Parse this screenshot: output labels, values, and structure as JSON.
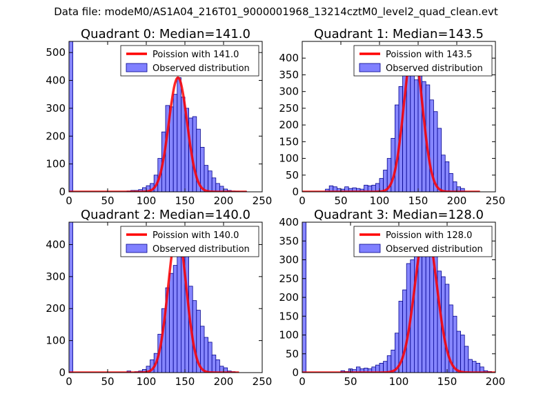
{
  "suptitle": "Data file: modeM0/AS1A04_216T01_9000001968_13214cztM0_level2_quad_clean.evt",
  "colors": {
    "poisson": "#ff0000",
    "bar_fill": "#8080ff",
    "bar_edge": "#00008b"
  },
  "chart_data": [
    {
      "type": "bar",
      "title": "Quadrant 0: Median=141.0",
      "xlim": [
        0,
        250
      ],
      "ylim": [
        0,
        540
      ],
      "xticks": [
        0,
        50,
        100,
        150,
        200,
        250
      ],
      "yticks": [
        0,
        100,
        200,
        300,
        400,
        500
      ],
      "legend": {
        "position": "top-right",
        "entries": [
          "Poission with 141.0",
          "Observed distribution"
        ]
      },
      "bin_width": 5,
      "bins": [
        {
          "x": 0,
          "y": 540
        },
        {
          "x": 75,
          "y": 3
        },
        {
          "x": 80,
          "y": 5
        },
        {
          "x": 85,
          "y": 5
        },
        {
          "x": 90,
          "y": 8
        },
        {
          "x": 95,
          "y": 15
        },
        {
          "x": 100,
          "y": 22
        },
        {
          "x": 105,
          "y": 30
        },
        {
          "x": 110,
          "y": 60
        },
        {
          "x": 115,
          "y": 120
        },
        {
          "x": 120,
          "y": 215
        },
        {
          "x": 125,
          "y": 310
        },
        {
          "x": 130,
          "y": 305
        },
        {
          "x": 135,
          "y": 350
        },
        {
          "x": 140,
          "y": 410
        },
        {
          "x": 145,
          "y": 340
        },
        {
          "x": 150,
          "y": 300
        },
        {
          "x": 155,
          "y": 265
        },
        {
          "x": 160,
          "y": 270
        },
        {
          "x": 165,
          "y": 225
        },
        {
          "x": 170,
          "y": 160
        },
        {
          "x": 175,
          "y": 95
        },
        {
          "x": 180,
          "y": 75
        },
        {
          "x": 185,
          "y": 50
        },
        {
          "x": 190,
          "y": 30
        },
        {
          "x": 195,
          "y": 20
        },
        {
          "x": 200,
          "y": 10
        },
        {
          "x": 205,
          "y": 5
        },
        {
          "x": 210,
          "y": 3
        },
        {
          "x": 215,
          "y": 2
        },
        {
          "x": 220,
          "y": 1
        },
        {
          "x": 225,
          "y": 1
        }
      ],
      "poisson": {
        "mean": 141.0,
        "peak": 410,
        "range": [
          0,
          230
        ]
      }
    },
    {
      "type": "bar",
      "title": "Quadrant 1: Median=143.5",
      "xlim": [
        0,
        250
      ],
      "ylim": [
        0,
        450
      ],
      "xticks": [
        0,
        50,
        100,
        150,
        200,
        250
      ],
      "yticks": [
        0,
        50,
        100,
        150,
        200,
        250,
        300,
        350,
        400
      ],
      "legend": {
        "position": "top-right",
        "entries": [
          "Poission with 143.5",
          "Observed distribution"
        ]
      },
      "bin_width": 5,
      "bins": [
        {
          "x": 30,
          "y": 8
        },
        {
          "x": 35,
          "y": 18
        },
        {
          "x": 40,
          "y": 15
        },
        {
          "x": 45,
          "y": 10
        },
        {
          "x": 50,
          "y": 8
        },
        {
          "x": 55,
          "y": 15
        },
        {
          "x": 60,
          "y": 10
        },
        {
          "x": 65,
          "y": 12
        },
        {
          "x": 70,
          "y": 10
        },
        {
          "x": 75,
          "y": 8
        },
        {
          "x": 80,
          "y": 20
        },
        {
          "x": 85,
          "y": 18
        },
        {
          "x": 90,
          "y": 20
        },
        {
          "x": 95,
          "y": 25
        },
        {
          "x": 100,
          "y": 40
        },
        {
          "x": 105,
          "y": 65
        },
        {
          "x": 110,
          "y": 100
        },
        {
          "x": 115,
          "y": 160
        },
        {
          "x": 120,
          "y": 260
        },
        {
          "x": 125,
          "y": 315
        },
        {
          "x": 130,
          "y": 360
        },
        {
          "x": 135,
          "y": 400
        },
        {
          "x": 140,
          "y": 350
        },
        {
          "x": 145,
          "y": 335
        },
        {
          "x": 150,
          "y": 370
        },
        {
          "x": 155,
          "y": 330
        },
        {
          "x": 160,
          "y": 320
        },
        {
          "x": 165,
          "y": 275
        },
        {
          "x": 170,
          "y": 240
        },
        {
          "x": 175,
          "y": 190
        },
        {
          "x": 180,
          "y": 110
        },
        {
          "x": 185,
          "y": 90
        },
        {
          "x": 190,
          "y": 55
        },
        {
          "x": 195,
          "y": 30
        },
        {
          "x": 200,
          "y": 15
        },
        {
          "x": 205,
          "y": 10
        }
      ],
      "poisson": {
        "mean": 143.5,
        "peak": 430,
        "range": [
          0,
          230
        ]
      }
    },
    {
      "type": "bar",
      "title": "Quadrant 2: Median=140.0",
      "xlim": [
        0,
        250
      ],
      "ylim": [
        0,
        470
      ],
      "xticks": [
        0,
        50,
        100,
        150,
        200,
        250
      ],
      "yticks": [
        0,
        100,
        200,
        300,
        400
      ],
      "legend": {
        "position": "top-right",
        "entries": [
          "Poission with 140.0",
          "Observed distribution"
        ]
      },
      "bin_width": 5,
      "bins": [
        {
          "x": 0,
          "y": 470
        },
        {
          "x": 75,
          "y": 5
        },
        {
          "x": 85,
          "y": 3
        },
        {
          "x": 90,
          "y": 5
        },
        {
          "x": 95,
          "y": 10
        },
        {
          "x": 100,
          "y": 20
        },
        {
          "x": 105,
          "y": 40
        },
        {
          "x": 110,
          "y": 60
        },
        {
          "x": 115,
          "y": 120
        },
        {
          "x": 120,
          "y": 200
        },
        {
          "x": 125,
          "y": 265
        },
        {
          "x": 130,
          "y": 310
        },
        {
          "x": 135,
          "y": 335
        },
        {
          "x": 140,
          "y": 440
        },
        {
          "x": 145,
          "y": 365
        },
        {
          "x": 150,
          "y": 380
        },
        {
          "x": 155,
          "y": 270
        },
        {
          "x": 160,
          "y": 225
        },
        {
          "x": 165,
          "y": 195
        },
        {
          "x": 170,
          "y": 145
        },
        {
          "x": 175,
          "y": 110
        },
        {
          "x": 180,
          "y": 95
        },
        {
          "x": 185,
          "y": 55
        },
        {
          "x": 190,
          "y": 40
        },
        {
          "x": 195,
          "y": 20
        },
        {
          "x": 200,
          "y": 15
        },
        {
          "x": 205,
          "y": 5
        },
        {
          "x": 210,
          "y": 3
        }
      ],
      "poisson": {
        "mean": 140.0,
        "peak": 440,
        "range": [
          0,
          220
        ]
      }
    },
    {
      "type": "bar",
      "title": "Quadrant 3: Median=128.0",
      "xlim": [
        0,
        200
      ],
      "ylim": [
        0,
        400
      ],
      "xticks": [
        0,
        50,
        100,
        150,
        200
      ],
      "yticks": [
        0,
        50,
        100,
        150,
        200,
        250,
        300,
        350,
        400
      ],
      "legend": {
        "position": "top-right",
        "entries": [
          "Poission with 128.0",
          "Observed distribution"
        ]
      },
      "bin_width": 4,
      "bins": [
        {
          "x": 0,
          "y": 400
        },
        {
          "x": 40,
          "y": 5
        },
        {
          "x": 44,
          "y": 3
        },
        {
          "x": 48,
          "y": 10
        },
        {
          "x": 52,
          "y": 8
        },
        {
          "x": 56,
          "y": 15
        },
        {
          "x": 60,
          "y": 10
        },
        {
          "x": 64,
          "y": 12
        },
        {
          "x": 68,
          "y": 10
        },
        {
          "x": 72,
          "y": 15
        },
        {
          "x": 76,
          "y": 20
        },
        {
          "x": 80,
          "y": 25
        },
        {
          "x": 84,
          "y": 30
        },
        {
          "x": 88,
          "y": 45
        },
        {
          "x": 92,
          "y": 60
        },
        {
          "x": 96,
          "y": 105
        },
        {
          "x": 100,
          "y": 190
        },
        {
          "x": 104,
          "y": 220
        },
        {
          "x": 108,
          "y": 290
        },
        {
          "x": 112,
          "y": 300
        },
        {
          "x": 116,
          "y": 350
        },
        {
          "x": 120,
          "y": 385
        },
        {
          "x": 124,
          "y": 380
        },
        {
          "x": 128,
          "y": 340
        },
        {
          "x": 132,
          "y": 315
        },
        {
          "x": 136,
          "y": 385
        },
        {
          "x": 140,
          "y": 270
        },
        {
          "x": 144,
          "y": 255
        },
        {
          "x": 148,
          "y": 235
        },
        {
          "x": 152,
          "y": 180
        },
        {
          "x": 156,
          "y": 150
        },
        {
          "x": 160,
          "y": 110
        },
        {
          "x": 164,
          "y": 100
        },
        {
          "x": 168,
          "y": 70
        },
        {
          "x": 172,
          "y": 35
        },
        {
          "x": 176,
          "y": 30
        },
        {
          "x": 180,
          "y": 25
        },
        {
          "x": 184,
          "y": 15
        },
        {
          "x": 188,
          "y": 5
        },
        {
          "x": 192,
          "y": 3
        }
      ],
      "poisson": {
        "mean": 128.0,
        "peak": 385,
        "range": [
          0,
          200
        ]
      }
    }
  ]
}
